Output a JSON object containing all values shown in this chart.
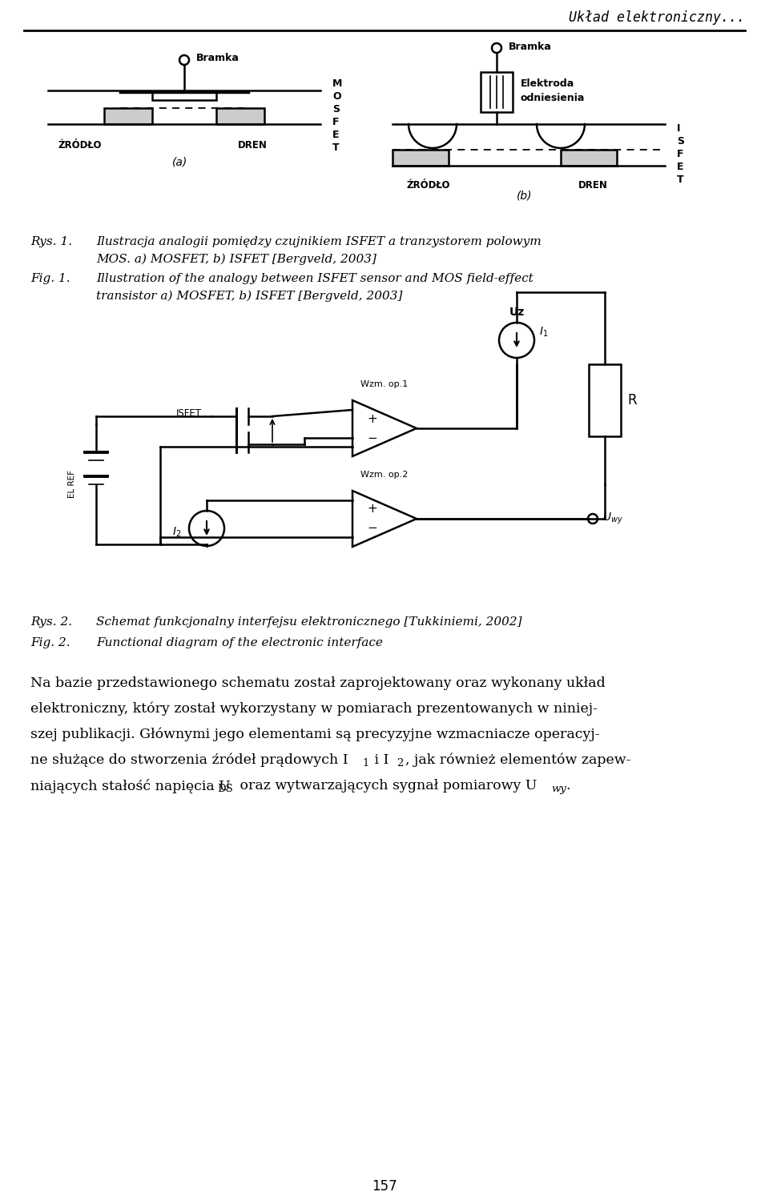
{
  "bg_color": "#ffffff",
  "header_text": "Układ elektroniczny...",
  "page_number": "157",
  "fig_width": 9.6,
  "fig_height": 15.04,
  "dpi": 100,
  "rys1_pl1": "Ilustracja analogii pomiędzy czujnikiem ISFET a tranzystorem polowym",
  "rys1_pl2": "MOS. a) MOSFET, b) ISFET [Bergveld, 2003]",
  "rys1_en1": "Illustration of the analogy between ISFET sensor and MOS field-effect",
  "rys1_en2": "transistor a) MOSFET, b) ISFET [Bergveld, 2003]",
  "rys2_pl": "Schemat funkcjonalny interfejsu elektronicznego [Tukkiniemi, 2002]",
  "rys2_en": "Functional diagram of the electronic interface",
  "body1": "Na bazie przedstawionego schematu został zaprojektowany oraz wykonany układ",
  "body2": "elektroniczny, który został wykorzystany w pomiarach prezentowanych w niniej-",
  "body3": "szej publikacji. Głównymi jego elementami są precyzyjne wzmacniacze operacyj-",
  "body4a": "ne służące do stworzenia źródeł prądowych I",
  "body4b": " i I",
  "body4c": ", jak również elementów zapew-",
  "body5a": "niających stałość napięcia U",
  "body5b": " oraz wytwarzających sygnał pomiarowy U",
  "body5c": "."
}
